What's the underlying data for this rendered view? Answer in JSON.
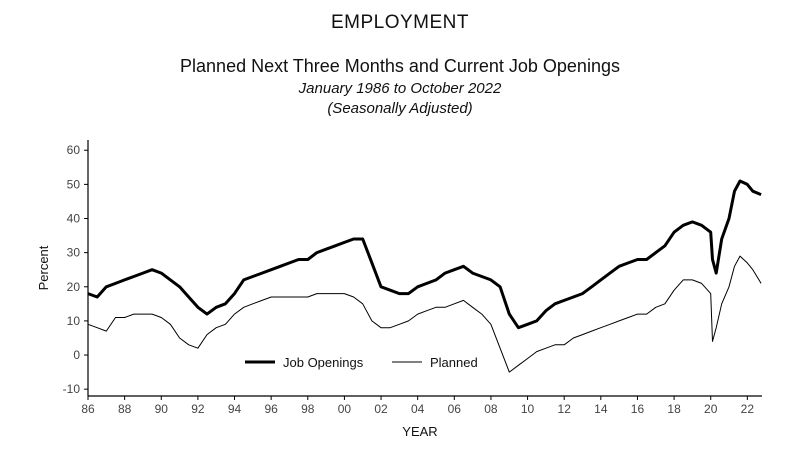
{
  "header": {
    "title": "EMPLOYMENT",
    "subtitle": "Planned Next Three Months and Current Job Openings",
    "date_range": "January 1986 to October 2022",
    "adjustment": "(Seasonally Adjusted)"
  },
  "chart_data": {
    "type": "line",
    "title": "Planned Next Three Months and Current Job Openings",
    "xlabel": "YEAR",
    "ylabel": "Percent",
    "xlim": [
      1986,
      2022.8
    ],
    "ylim": [
      -12,
      63
    ],
    "x_tick_labels": [
      "86",
      "88",
      "90",
      "92",
      "94",
      "96",
      "98",
      "00",
      "02",
      "04",
      "06",
      "08",
      "10",
      "12",
      "14",
      "16",
      "18",
      "20",
      "22"
    ],
    "x_tick_values": [
      1986,
      1988,
      1990,
      1992,
      1994,
      1996,
      1998,
      2000,
      2002,
      2004,
      2006,
      2008,
      2010,
      2012,
      2014,
      2016,
      2018,
      2020,
      2022
    ],
    "y_ticks": [
      -10,
      0,
      10,
      20,
      30,
      40,
      50,
      60
    ],
    "grid": false,
    "legend": "bottom-center",
    "series": [
      {
        "name": "Job Openings",
        "color": "#000000",
        "width": "thick",
        "x": [
          1986,
          1986.5,
          1987,
          1987.5,
          1988,
          1988.5,
          1989,
          1989.5,
          1990,
          1990.5,
          1991,
          1991.5,
          1992,
          1992.5,
          1993,
          1993.5,
          1994,
          1994.5,
          1995,
          1995.5,
          1996,
          1996.5,
          1997,
          1997.5,
          1998,
          1998.5,
          1999,
          1999.5,
          2000,
          2000.5,
          2001,
          2001.5,
          2002,
          2002.5,
          2003,
          2003.5,
          2004,
          2004.5,
          2005,
          2005.5,
          2006,
          2006.5,
          2007,
          2007.5,
          2008,
          2008.5,
          2009,
          2009.5,
          2010,
          2010.5,
          2011,
          2011.5,
          2012,
          2012.5,
          2013,
          2013.5,
          2014,
          2014.5,
          2015,
          2015.5,
          2016,
          2016.5,
          2017,
          2017.5,
          2018,
          2018.5,
          2019,
          2019.5,
          2020,
          2020.1,
          2020.3,
          2020.6,
          2021,
          2021.3,
          2021.6,
          2022,
          2022.3,
          2022.75
        ],
        "y": [
          18,
          17,
          20,
          21,
          22,
          23,
          24,
          25,
          24,
          22,
          20,
          17,
          14,
          12,
          14,
          15,
          18,
          22,
          23,
          24,
          25,
          26,
          27,
          28,
          28,
          30,
          31,
          32,
          33,
          34,
          34,
          27,
          20,
          19,
          18,
          18,
          20,
          21,
          22,
          24,
          25,
          26,
          24,
          23,
          22,
          20,
          12,
          8,
          9,
          10,
          13,
          15,
          16,
          17,
          18,
          20,
          22,
          24,
          26,
          27,
          28,
          28,
          30,
          32,
          36,
          38,
          39,
          38,
          36,
          28,
          24,
          34,
          40,
          48,
          51,
          50,
          48,
          47
        ]
      },
      {
        "name": "Planned",
        "color": "#000000",
        "width": "thin",
        "x": [
          1986,
          1986.5,
          1987,
          1987.5,
          1988,
          1988.5,
          1989,
          1989.5,
          1990,
          1990.5,
          1991,
          1991.5,
          1992,
          1992.5,
          1993,
          1993.5,
          1994,
          1994.5,
          1995,
          1995.5,
          1996,
          1996.5,
          1997,
          1997.5,
          1998,
          1998.5,
          1999,
          1999.5,
          2000,
          2000.5,
          2001,
          2001.5,
          2002,
          2002.5,
          2003,
          2003.5,
          2004,
          2004.5,
          2005,
          2005.5,
          2006,
          2006.5,
          2007,
          2007.5,
          2008,
          2008.5,
          2009,
          2009.5,
          2010,
          2010.5,
          2011,
          2011.5,
          2012,
          2012.5,
          2013,
          2013.5,
          2014,
          2014.5,
          2015,
          2015.5,
          2016,
          2016.5,
          2017,
          2017.5,
          2018,
          2018.5,
          2019,
          2019.5,
          2020,
          2020.1,
          2020.3,
          2020.6,
          2021,
          2021.3,
          2021.6,
          2022,
          2022.3,
          2022.75
        ],
        "y": [
          9,
          8,
          7,
          11,
          11,
          12,
          12,
          12,
          11,
          9,
          5,
          3,
          2,
          6,
          8,
          9,
          12,
          14,
          15,
          16,
          17,
          17,
          17,
          17,
          17,
          18,
          18,
          18,
          18,
          17,
          15,
          10,
          8,
          8,
          9,
          10,
          12,
          13,
          14,
          14,
          15,
          16,
          14,
          12,
          9,
          2,
          -5,
          -3,
          -1,
          1,
          2,
          3,
          3,
          5,
          6,
          7,
          8,
          9,
          10,
          11,
          12,
          12,
          14,
          15,
          19,
          22,
          22,
          21,
          18,
          4,
          8,
          15,
          20,
          26,
          29,
          27,
          25,
          21
        ]
      }
    ]
  }
}
